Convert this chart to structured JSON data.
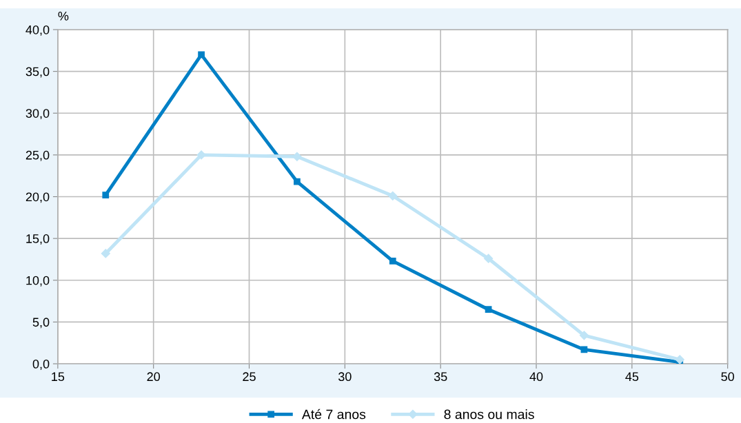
{
  "chart_data": {
    "type": "line",
    "ylabel": "%",
    "x": [
      17.5,
      22.5,
      27.5,
      32.5,
      37.5,
      42.5,
      47.5
    ],
    "series": [
      {
        "name": "Até 7 anos",
        "color": "#0080c6",
        "marker": "square",
        "values": [
          20.2,
          37.0,
          21.8,
          12.3,
          6.5,
          1.7,
          0.2
        ]
      },
      {
        "name": "8 anos ou mais",
        "color": "#bfe4f6",
        "marker": "diamond",
        "values": [
          13.2,
          25.0,
          24.8,
          20.1,
          12.6,
          3.4,
          0.5
        ]
      }
    ],
    "xlim": [
      15,
      50
    ],
    "xticks": [
      15,
      20,
      25,
      30,
      35,
      40,
      45,
      50
    ],
    "ylim": [
      0,
      40
    ],
    "yticks": [
      {
        "value": 0,
        "label": "0,0"
      },
      {
        "value": 5,
        "label": "5,0"
      },
      {
        "value": 10,
        "label": "10,0"
      },
      {
        "value": 15,
        "label": "15,0"
      },
      {
        "value": 20,
        "label": "20,0"
      },
      {
        "value": 25,
        "label": "25,0"
      },
      {
        "value": 30,
        "label": "30,0"
      },
      {
        "value": 35,
        "label": "35,0"
      },
      {
        "value": 40,
        "label": "40,0"
      }
    ],
    "grid": true,
    "legend": "bottom",
    "line_style": "solid"
  }
}
